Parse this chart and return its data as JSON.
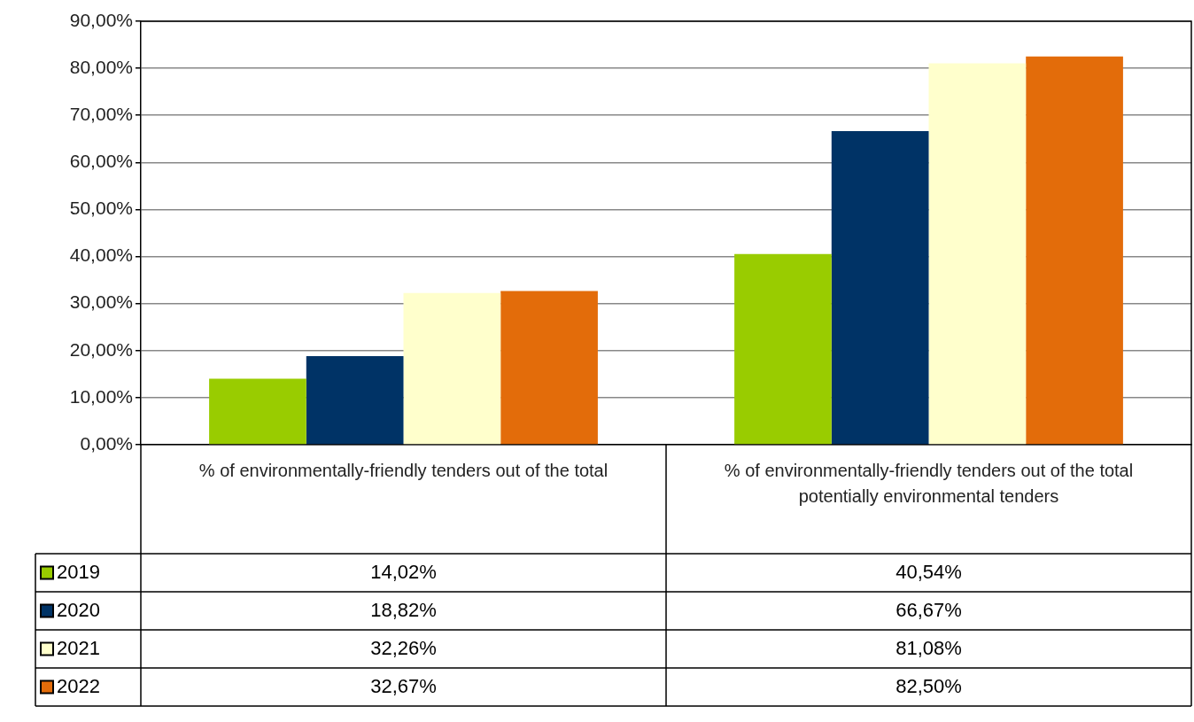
{
  "chart_data": {
    "type": "bar",
    "categories": [
      "% of environmentally-friendly tenders out of the total",
      "% of environmentally-friendly tenders out of the total potentially environmental tenders"
    ],
    "series": [
      {
        "name": "2019",
        "color": "#99cc00",
        "values": [
          14.02,
          40.54
        ],
        "value_labels": [
          "14,02%",
          "40,54%"
        ]
      },
      {
        "name": "2020",
        "color": "#003366",
        "values": [
          18.82,
          66.67
        ],
        "value_labels": [
          "18,82%",
          "66,67%"
        ]
      },
      {
        "name": "2021",
        "color": "#ffffcc",
        "values": [
          32.26,
          81.08
        ],
        "value_labels": [
          "32,26%",
          "81,08%"
        ]
      },
      {
        "name": "2022",
        "color": "#e36c0a",
        "values": [
          32.67,
          82.5
        ],
        "value_labels": [
          "32,67%",
          "82,50%"
        ]
      }
    ],
    "ylim": [
      0,
      90
    ],
    "yticks": [
      {
        "value": 0,
        "label": "0,00%"
      },
      {
        "value": 10,
        "label": "10,00%"
      },
      {
        "value": 20,
        "label": "20,00%"
      },
      {
        "value": 30,
        "label": "30,00%"
      },
      {
        "value": 40,
        "label": "40,00%"
      },
      {
        "value": 50,
        "label": "50,00%"
      },
      {
        "value": 60,
        "label": "60,00%"
      },
      {
        "value": 70,
        "label": "70,00%"
      },
      {
        "value": 80,
        "label": "80,00%"
      },
      {
        "value": 90,
        "label": "90,00%"
      }
    ],
    "grid": "y",
    "legend": "bottom left"
  }
}
